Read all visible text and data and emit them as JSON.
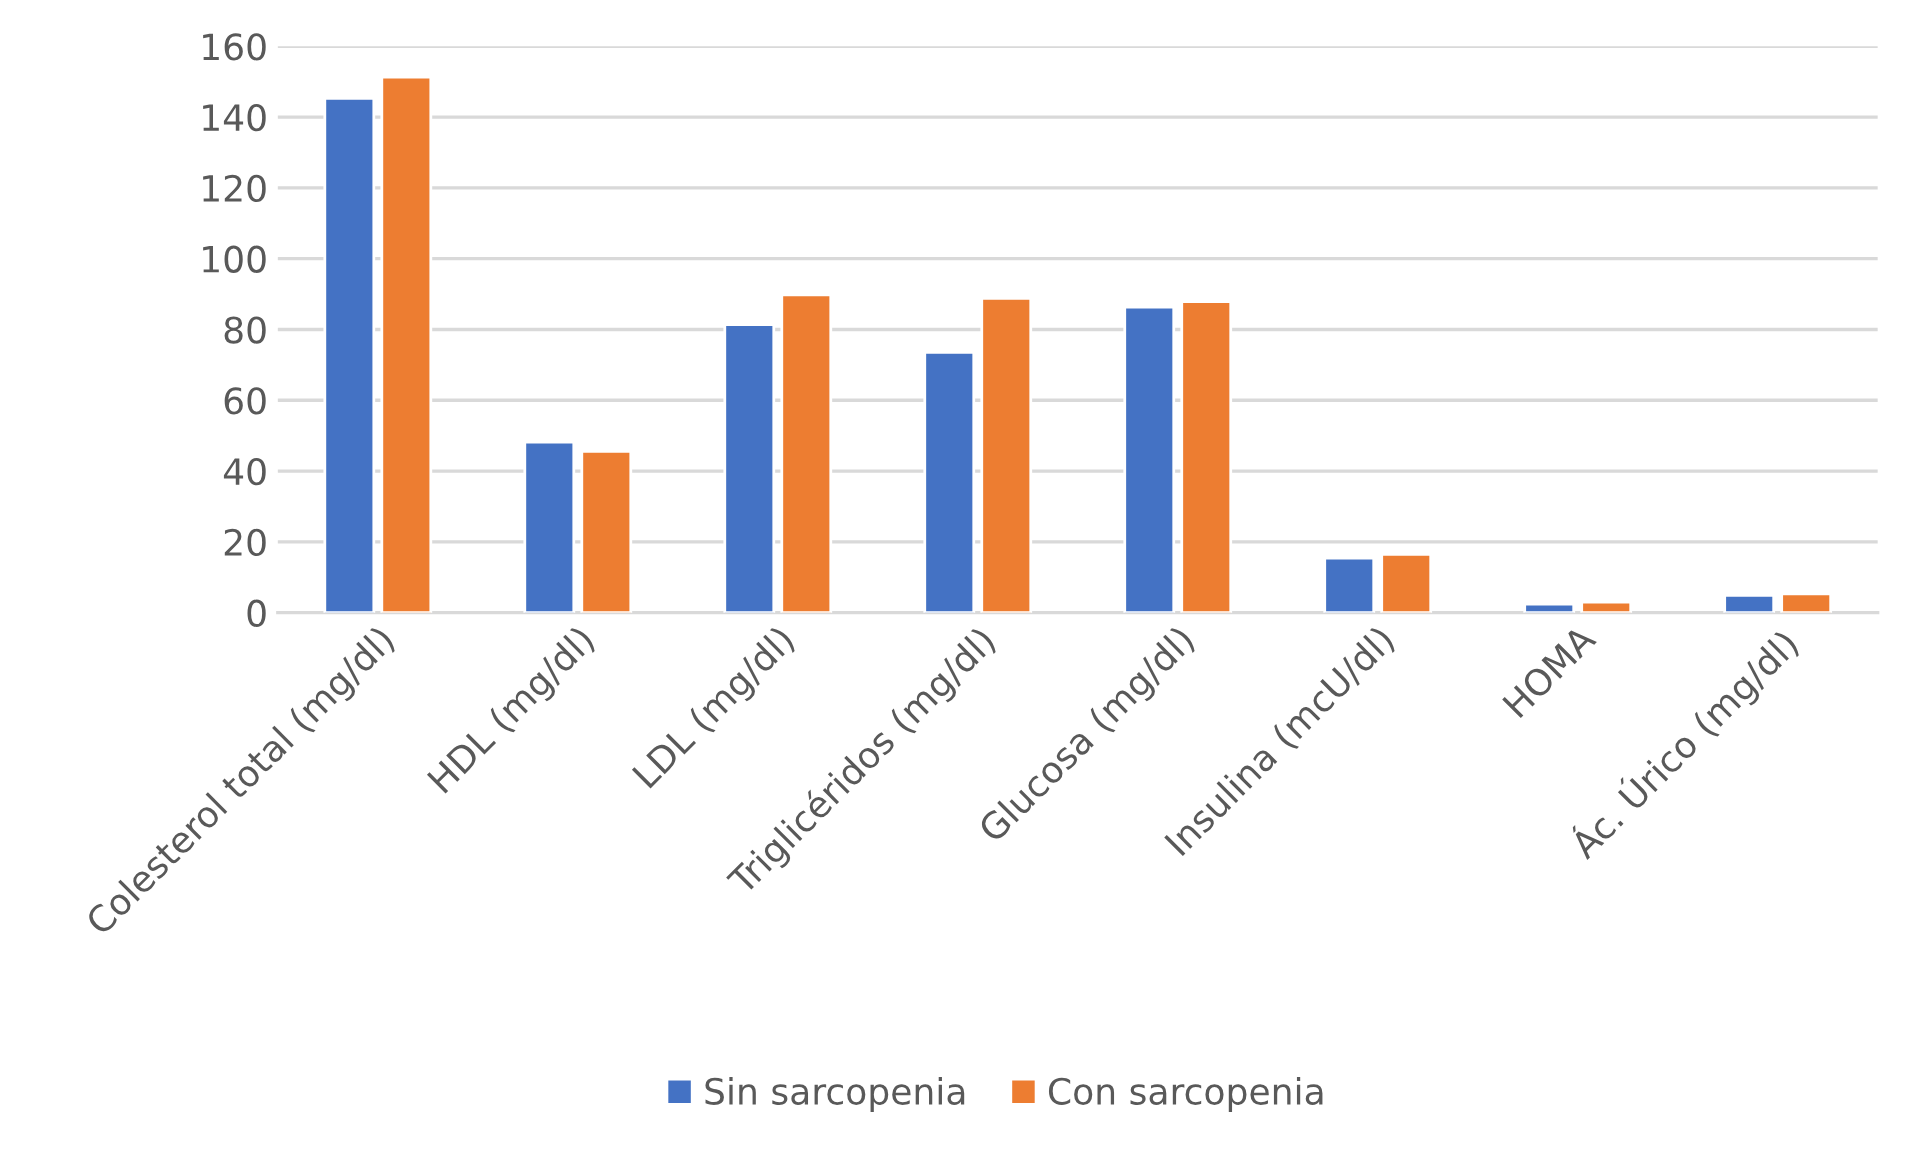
{
  "chart_data": {
    "type": "bar",
    "categories": [
      "Colesterol total (mg/dl)",
      "HDL (mg/dl)",
      "LDL (mg/dl)",
      "Triglicéridos (mg/dl)",
      "Glucosa (mg/dl)",
      "Insulina (mcU/dl)",
      "HOMA",
      "Ác. Úrico (mg/dl)"
    ],
    "series": [
      {
        "name": "Sin sarcopenia",
        "color": "#4472c4",
        "values": [
          145.3,
          48.2,
          81.4,
          73.5,
          86.3,
          15.4,
          2.4,
          4.9
        ]
      },
      {
        "name": "Con sarcopenia",
        "color": "#ed7d31",
        "values": [
          151.3,
          45.6,
          89.8,
          88.8,
          87.9,
          16.5,
          3.0,
          5.3
        ]
      }
    ],
    "ylim": [
      0,
      160
    ],
    "yticks": [
      0,
      20,
      40,
      60,
      80,
      100,
      120,
      140,
      160
    ],
    "grid": "y",
    "legend": "bottom"
  }
}
